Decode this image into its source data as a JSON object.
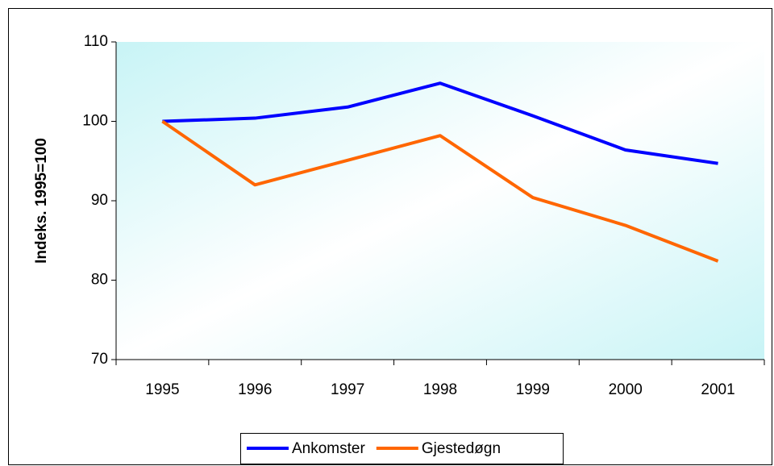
{
  "chart_data": {
    "type": "line",
    "y_label": "Indeks. 1995=100",
    "categories": [
      "1995",
      "1996",
      "1997",
      "1998",
      "1999",
      "2000",
      "2001"
    ],
    "series": [
      {
        "name": "Ankomster",
        "color": "#0000ff",
        "values": [
          100,
          100.4,
          101.8,
          104.8,
          100.7,
          96.4,
          94.7
        ]
      },
      {
        "name": "Gjestedøgn",
        "color": "#ff6600",
        "values": [
          100,
          92.0,
          95.1,
          98.2,
          90.4,
          86.9,
          82.4
        ]
      }
    ],
    "ylim": [
      70,
      110
    ],
    "yticks": [
      70,
      80,
      90,
      100,
      110
    ],
    "legend": "bottom"
  }
}
